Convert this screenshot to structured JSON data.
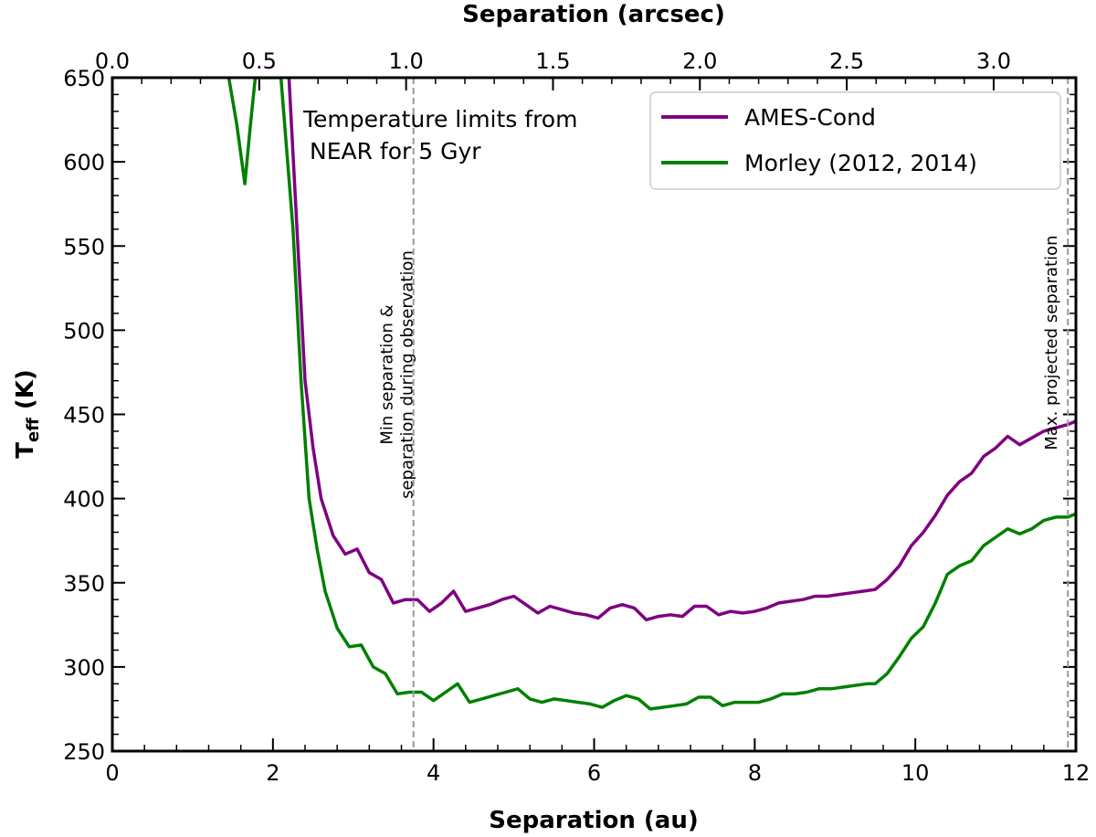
{
  "chart_data": {
    "type": "line",
    "xlabel": "Separation (au)",
    "x2label": "Separation (arcsec)",
    "ylabel": "T",
    "ylabel_sub": "eff",
    "ylabel_unit": " (K)",
    "xlim": [
      0,
      12
    ],
    "x2lim": [
      0.0,
      3.28
    ],
    "ylim": [
      250,
      650
    ],
    "xticks": [
      0,
      2,
      4,
      6,
      8,
      10,
      12
    ],
    "x2ticks": [
      0.0,
      0.5,
      1.0,
      1.5,
      2.0,
      2.5,
      3.0
    ],
    "x2ticklabels": [
      "0.0",
      "0.5",
      "1.0",
      "1.5",
      "2.0",
      "2.5",
      "3.0"
    ],
    "yticks": [
      250,
      300,
      350,
      400,
      450,
      500,
      550,
      600,
      650
    ],
    "grid": false,
    "legend_position": "top-right",
    "annotation_lines": [
      "Temperature limits from",
      "NEAR for 5 Gyr"
    ],
    "vlines": [
      {
        "x": 3.75,
        "label_lines": [
          "Min separation &",
          "separation during observation"
        ]
      },
      {
        "x": 11.9,
        "label_lines": [
          "Max. projected separation"
        ]
      }
    ],
    "series": [
      {
        "name": "AMES-Cond",
        "color": "#800080",
        "points": [
          [
            2.2,
            650
          ],
          [
            2.3,
            560
          ],
          [
            2.4,
            470
          ],
          [
            2.5,
            430
          ],
          [
            2.6,
            400
          ],
          [
            2.75,
            378
          ],
          [
            2.9,
            367
          ],
          [
            3.05,
            370
          ],
          [
            3.2,
            356
          ],
          [
            3.35,
            352
          ],
          [
            3.5,
            338
          ],
          [
            3.65,
            340
          ],
          [
            3.8,
            340
          ],
          [
            3.95,
            333
          ],
          [
            4.1,
            338
          ],
          [
            4.25,
            345
          ],
          [
            4.4,
            333
          ],
          [
            4.55,
            335
          ],
          [
            4.7,
            337
          ],
          [
            4.85,
            340
          ],
          [
            5.0,
            342
          ],
          [
            5.15,
            337
          ],
          [
            5.3,
            332
          ],
          [
            5.45,
            336
          ],
          [
            5.6,
            334
          ],
          [
            5.75,
            332
          ],
          [
            5.9,
            331
          ],
          [
            6.05,
            329
          ],
          [
            6.2,
            335
          ],
          [
            6.35,
            337
          ],
          [
            6.5,
            335
          ],
          [
            6.65,
            328
          ],
          [
            6.8,
            330
          ],
          [
            6.95,
            331
          ],
          [
            7.1,
            330
          ],
          [
            7.25,
            336
          ],
          [
            7.4,
            336
          ],
          [
            7.55,
            331
          ],
          [
            7.7,
            333
          ],
          [
            7.85,
            332
          ],
          [
            8.0,
            333
          ],
          [
            8.15,
            335
          ],
          [
            8.3,
            338
          ],
          [
            8.45,
            339
          ],
          [
            8.6,
            340
          ],
          [
            8.75,
            342
          ],
          [
            8.9,
            342
          ],
          [
            9.05,
            343
          ],
          [
            9.2,
            344
          ],
          [
            9.35,
            345
          ],
          [
            9.5,
            346
          ],
          [
            9.65,
            352
          ],
          [
            9.8,
            360
          ],
          [
            9.95,
            372
          ],
          [
            10.1,
            380
          ],
          [
            10.25,
            390
          ],
          [
            10.4,
            402
          ],
          [
            10.55,
            410
          ],
          [
            10.7,
            415
          ],
          [
            10.85,
            425
          ],
          [
            11.0,
            430
          ],
          [
            11.15,
            437
          ],
          [
            11.3,
            432
          ],
          [
            11.45,
            436
          ],
          [
            11.6,
            440
          ],
          [
            11.75,
            442
          ],
          [
            11.9,
            444
          ],
          [
            12.0,
            446
          ]
        ]
      },
      {
        "name": "Morley (2012, 2014)",
        "color": "#008000",
        "points": [
          [
            1.45,
            650
          ],
          [
            1.55,
            622
          ],
          [
            1.65,
            587
          ],
          [
            1.72,
            622
          ],
          [
            1.78,
            650
          ],
          [
            2.1,
            650
          ],
          [
            2.25,
            560
          ],
          [
            2.35,
            470
          ],
          [
            2.45,
            400
          ],
          [
            2.55,
            370
          ],
          [
            2.65,
            345
          ],
          [
            2.8,
            323
          ],
          [
            2.95,
            312
          ],
          [
            3.1,
            313
          ],
          [
            3.25,
            300
          ],
          [
            3.4,
            296
          ],
          [
            3.55,
            284
          ],
          [
            3.7,
            285
          ],
          [
            3.85,
            285
          ],
          [
            4.0,
            280
          ],
          [
            4.15,
            285
          ],
          [
            4.3,
            290
          ],
          [
            4.45,
            279
          ],
          [
            4.6,
            281
          ],
          [
            4.75,
            283
          ],
          [
            4.9,
            285
          ],
          [
            5.05,
            287
          ],
          [
            5.2,
            281
          ],
          [
            5.35,
            279
          ],
          [
            5.5,
            281
          ],
          [
            5.65,
            280
          ],
          [
            5.8,
            279
          ],
          [
            5.95,
            278
          ],
          [
            6.1,
            276
          ],
          [
            6.25,
            280
          ],
          [
            6.4,
            283
          ],
          [
            6.55,
            281
          ],
          [
            6.7,
            275
          ],
          [
            6.85,
            276
          ],
          [
            7.0,
            277
          ],
          [
            7.15,
            278
          ],
          [
            7.3,
            282
          ],
          [
            7.45,
            282
          ],
          [
            7.6,
            277
          ],
          [
            7.75,
            279
          ],
          [
            7.9,
            279
          ],
          [
            8.05,
            279
          ],
          [
            8.2,
            281
          ],
          [
            8.35,
            284
          ],
          [
            8.5,
            284
          ],
          [
            8.65,
            285
          ],
          [
            8.8,
            287
          ],
          [
            8.95,
            287
          ],
          [
            9.1,
            288
          ],
          [
            9.25,
            289
          ],
          [
            9.4,
            290
          ],
          [
            9.5,
            290
          ],
          [
            9.65,
            296
          ],
          [
            9.8,
            306
          ],
          [
            9.95,
            317
          ],
          [
            10.1,
            324
          ],
          [
            10.25,
            338
          ],
          [
            10.4,
            355
          ],
          [
            10.55,
            360
          ],
          [
            10.7,
            363
          ],
          [
            10.85,
            372
          ],
          [
            11.0,
            377
          ],
          [
            11.15,
            382
          ],
          [
            11.3,
            379
          ],
          [
            11.45,
            382
          ],
          [
            11.6,
            387
          ],
          [
            11.75,
            389
          ],
          [
            11.9,
            389
          ],
          [
            12.0,
            391
          ]
        ]
      }
    ]
  }
}
